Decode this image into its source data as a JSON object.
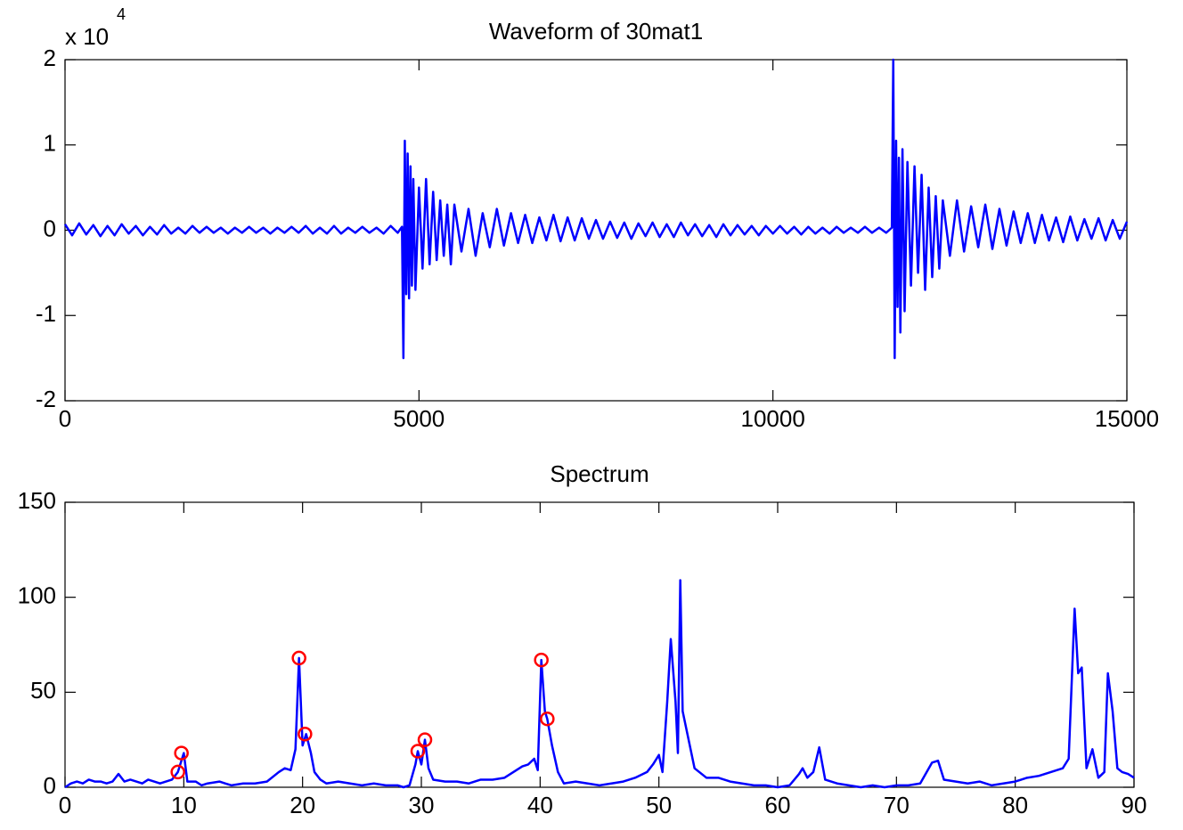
{
  "chart_data": [
    {
      "type": "line",
      "title": "Waveform of 30mat1",
      "y_exponent_base": "x 10",
      "y_exponent": "4",
      "xlim": [
        0,
        15000
      ],
      "xticks": [
        0,
        5000,
        10000,
        15000
      ],
      "ylim": [
        -20000,
        20000
      ],
      "yticks": [
        {
          "value": -20000,
          "label": "-2"
        },
        {
          "value": -10000,
          "label": "-1"
        },
        {
          "value": 0,
          "label": "0"
        },
        {
          "value": 10000,
          "label": "1"
        },
        {
          "value": 20000,
          "label": "2"
        }
      ],
      "series": [
        {
          "color": "#0000ff",
          "marker": "none",
          "x": [
            0,
            100,
            200,
            300,
            400,
            500,
            600,
            700,
            800,
            900,
            1000,
            1100,
            1200,
            1300,
            1400,
            1500,
            1600,
            1700,
            1800,
            1900,
            2000,
            2100,
            2200,
            2300,
            2400,
            2500,
            2600,
            2700,
            2800,
            2900,
            3000,
            3100,
            3200,
            3300,
            3400,
            3500,
            3600,
            3700,
            3800,
            3900,
            4000,
            4100,
            4200,
            4300,
            4400,
            4500,
            4600,
            4700,
            4760,
            4780,
            4800,
            4820,
            4840,
            4860,
            4880,
            4900,
            4920,
            4950,
            5000,
            5050,
            5100,
            5150,
            5200,
            5250,
            5300,
            5350,
            5400,
            5450,
            5500,
            5600,
            5700,
            5800,
            5900,
            6000,
            6100,
            6200,
            6300,
            6400,
            6500,
            6600,
            6700,
            6800,
            6900,
            7000,
            7100,
            7200,
            7300,
            7400,
            7500,
            7600,
            7700,
            7800,
            7900,
            8000,
            8100,
            8200,
            8300,
            8400,
            8500,
            8600,
            8700,
            8800,
            8900,
            9000,
            9100,
            9200,
            9300,
            9400,
            9500,
            9600,
            9700,
            9800,
            9900,
            10000,
            10100,
            10200,
            10300,
            10400,
            10500,
            10600,
            10700,
            10800,
            10900,
            11000,
            11100,
            11200,
            11300,
            11400,
            11500,
            11600,
            11680,
            11700,
            11720,
            11740,
            11760,
            11780,
            11800,
            11830,
            11860,
            11900,
            11950,
            12000,
            12050,
            12100,
            12150,
            12200,
            12250,
            12300,
            12350,
            12400,
            12500,
            12600,
            12700,
            12800,
            12900,
            13000,
            13100,
            13200,
            13300,
            13400,
            13500,
            13600,
            13700,
            13800,
            13900,
            14000,
            14100,
            14200,
            14300,
            14400,
            14500,
            14600,
            14700,
            14800,
            14900,
            15000
          ],
          "values": [
            700,
            -600,
            800,
            -500,
            600,
            -700,
            500,
            -600,
            700,
            -400,
            500,
            -600,
            400,
            -500,
            600,
            -400,
            300,
            -400,
            500,
            -300,
            400,
            -300,
            300,
            -400,
            300,
            -300,
            400,
            -300,
            300,
            -400,
            300,
            -300,
            400,
            -300,
            500,
            -400,
            300,
            -400,
            500,
            -400,
            300,
            -300,
            400,
            -300,
            300,
            -400,
            500,
            -300,
            400,
            -15000,
            10500,
            -7500,
            9000,
            -8000,
            7500,
            -6500,
            6000,
            -7000,
            5000,
            -4500,
            6000,
            -4000,
            4500,
            -3500,
            3500,
            -3000,
            3000,
            -4000,
            3000,
            -2500,
            2500,
            -3000,
            2000,
            -2000,
            2500,
            -1800,
            2000,
            -1500,
            1800,
            -1500,
            1500,
            -1200,
            1800,
            -1300,
            1500,
            -1200,
            1400,
            -1000,
            1200,
            -1000,
            1000,
            -900,
            900,
            -1000,
            800,
            -700,
            900,
            -800,
            700,
            -800,
            900,
            -600,
            700,
            -700,
            600,
            -800,
            700,
            -600,
            600,
            -500,
            500,
            -600,
            500,
            -400,
            500,
            -400,
            400,
            -500,
            400,
            -400,
            300,
            -400,
            400,
            -300,
            300,
            -300,
            400,
            -300,
            300,
            -300,
            300,
            20000,
            -15000,
            10500,
            -9000,
            8500,
            -12000,
            9500,
            -9500,
            8000,
            -6500,
            7500,
            -5000,
            6500,
            -7000,
            5000,
            -5500,
            4000,
            -4500,
            3500,
            -3000,
            3500,
            -2500,
            2800,
            -2000,
            3000,
            -2200,
            2500,
            -1800,
            2200,
            -1500,
            2000,
            -1500,
            1800,
            -1200,
            1500,
            -1400,
            1600,
            -1200,
            1300,
            -1000,
            1400,
            -1200,
            1200,
            -1000,
            1000
          ]
        }
      ]
    },
    {
      "type": "line",
      "title": "Spectrum",
      "xlim": [
        0,
        90
      ],
      "xticks": [
        0,
        10,
        20,
        30,
        40,
        50,
        60,
        70,
        80,
        90
      ],
      "ylim": [
        0,
        150
      ],
      "yticks": [
        0,
        50,
        100,
        150
      ],
      "series": [
        {
          "color": "#0000ff",
          "marker": "none",
          "x": [
            0,
            0.5,
            1,
            1.5,
            2,
            2.5,
            3,
            3.5,
            4,
            4.5,
            5,
            5.5,
            6,
            6.5,
            7,
            7.5,
            8,
            8.5,
            9,
            9.5,
            10,
            10.3,
            11,
            11.5,
            12,
            13,
            14,
            15,
            16,
            17,
            18,
            18.5,
            19,
            19.4,
            19.7,
            20,
            20.3,
            20.7,
            21,
            21.5,
            22,
            23,
            24,
            25,
            26,
            27,
            28,
            28.5,
            29,
            29.5,
            29.7,
            30,
            30.3,
            30.6,
            31,
            32,
            33,
            34,
            35,
            36,
            37,
            38,
            38.5,
            39,
            39.5,
            39.8,
            40.1,
            40.4,
            40.6,
            41,
            41.5,
            42,
            43,
            44,
            45,
            46,
            47,
            48,
            49,
            49.5,
            50,
            50.3,
            50.7,
            51,
            51.4,
            51.6,
            51.8,
            52,
            52.4,
            53,
            54,
            55,
            56,
            57,
            58,
            59,
            60,
            61,
            61.8,
            62.1,
            62.5,
            63,
            63.5,
            64,
            65,
            66,
            67,
            68,
            69,
            70,
            71,
            72,
            73,
            73.5,
            74,
            75,
            76,
            77,
            78,
            79,
            80,
            81,
            82,
            83,
            84,
            84.5,
            85,
            85.3,
            85.6,
            86,
            86.5,
            87,
            87.5,
            87.8,
            88.2,
            88.6,
            89,
            89.5,
            90
          ],
          "values": [
            0,
            2,
            3,
            2,
            4,
            3,
            3,
            2,
            3,
            7,
            3,
            4,
            3,
            2,
            4,
            3,
            2,
            3,
            4,
            8,
            18,
            3,
            3,
            1,
            2,
            3,
            1,
            2,
            2,
            3,
            8,
            10,
            9,
            20,
            68,
            22,
            28,
            18,
            8,
            4,
            2,
            3,
            2,
            1,
            2,
            1,
            1,
            0,
            1,
            12,
            19,
            12,
            25,
            10,
            4,
            3,
            3,
            2,
            4,
            4,
            5,
            9,
            11,
            12,
            15,
            9,
            67,
            40,
            36,
            22,
            8,
            2,
            3,
            2,
            1,
            2,
            3,
            5,
            8,
            12,
            17,
            8,
            45,
            78,
            45,
            18,
            109,
            40,
            28,
            10,
            5,
            5,
            3,
            2,
            1,
            1,
            0,
            1,
            7,
            10,
            5,
            8,
            21,
            4,
            2,
            1,
            0,
            1,
            0,
            1,
            1,
            2,
            13,
            14,
            4,
            3,
            2,
            3,
            1,
            2,
            3,
            5,
            6,
            8,
            10,
            15,
            94,
            60,
            63,
            10,
            20,
            5,
            8,
            60,
            40,
            10,
            8,
            7,
            5
          ]
        },
        {
          "color": "#ff0000",
          "marker": "circle",
          "x": [
            9.5,
            9.8,
            19.7,
            20.2,
            29.7,
            30.3,
            40.1,
            40.6
          ],
          "values": [
            8,
            18,
            68,
            28,
            19,
            25,
            67,
            36
          ]
        }
      ]
    }
  ]
}
